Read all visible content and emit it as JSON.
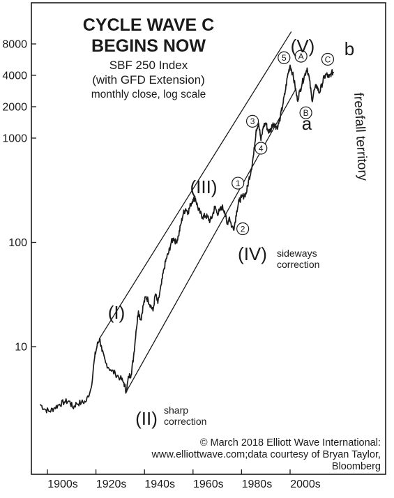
{
  "chart_data": {
    "type": "line",
    "title_line1": "CYCLE WAVE C",
    "title_line2": "BEGINS NOW",
    "subtitle_line1": "SBF 250 Index",
    "subtitle_line2": "(with GFD Extension)",
    "subtitle_line3": "monthly close, log scale",
    "y_scale": "log",
    "ylim": [
      1.9,
      11000
    ],
    "xlim": [
      1897,
      2020
    ],
    "y_ticks": [
      {
        "value": 8000,
        "label": "8000"
      },
      {
        "value": 4000,
        "label": "4000"
      },
      {
        "value": 2000,
        "label": "2000"
      },
      {
        "value": 1000,
        "label": "1000"
      },
      {
        "value": 100,
        "label": "100"
      },
      {
        "value": 10,
        "label": "10"
      }
    ],
    "x_ticks": [
      {
        "value": 1900,
        "label": "1900s"
      },
      {
        "value": 1920,
        "label": "1920s"
      },
      {
        "value": 1940,
        "label": "1940s"
      },
      {
        "value": 1960,
        "label": "1960s"
      },
      {
        "value": 1980,
        "label": "1980s"
      },
      {
        "value": 2000,
        "label": "2000s"
      }
    ],
    "series": [
      {
        "points": [
          [
            1897,
            2.8
          ],
          [
            1899,
            2.5
          ],
          [
            1901,
            2.4
          ],
          [
            1903,
            2.6
          ],
          [
            1905,
            2.8
          ],
          [
            1907,
            2.95
          ],
          [
            1909,
            3.0
          ],
          [
            1910.5,
            2.6
          ],
          [
            1912,
            2.85
          ],
          [
            1914,
            2.9
          ],
          [
            1916,
            3.0
          ],
          [
            1918,
            4.0
          ],
          [
            1919.5,
            8.0
          ],
          [
            1920.5,
            10.3
          ],
          [
            1921.5,
            12.0
          ],
          [
            1922.5,
            9.0
          ],
          [
            1924,
            7.0
          ],
          [
            1926,
            6.0
          ],
          [
            1928,
            5.5
          ],
          [
            1930,
            5.0
          ],
          [
            1931.5,
            4.5
          ],
          [
            1932.5,
            3.7
          ],
          [
            1933.5,
            5.2
          ],
          [
            1934.5,
            5.4
          ],
          [
            1935.5,
            8.0
          ],
          [
            1936.5,
            14.0
          ],
          [
            1937.5,
            22.0
          ],
          [
            1938.5,
            18.0
          ],
          [
            1939.5,
            25.0
          ],
          [
            1940.5,
            30.0
          ],
          [
            1941.5,
            28.0
          ],
          [
            1942.5,
            25.0
          ],
          [
            1943.5,
            22.0
          ],
          [
            1944.5,
            32.0
          ],
          [
            1945.5,
            26.0
          ],
          [
            1947,
            40.0
          ],
          [
            1948,
            55.0
          ],
          [
            1949,
            70.0
          ],
          [
            1950,
            80.0
          ],
          [
            1951,
            100.0
          ],
          [
            1952,
            110.0
          ],
          [
            1953,
            100.0
          ],
          [
            1954,
            115.0
          ],
          [
            1955,
            150.0
          ],
          [
            1956,
            190.0
          ],
          [
            1957,
            210.0
          ],
          [
            1958,
            195.0
          ],
          [
            1959,
            230.0
          ],
          [
            1960,
            260.0
          ],
          [
            1961,
            265.0
          ],
          [
            1962,
            215.0
          ],
          [
            1963,
            190.0
          ],
          [
            1964,
            175.0
          ],
          [
            1965,
            180.0
          ],
          [
            1966,
            175.0
          ],
          [
            1967,
            160.0
          ],
          [
            1968,
            180.0
          ],
          [
            1969,
            220.0
          ],
          [
            1970,
            190.0
          ],
          [
            1971,
            200.0
          ],
          [
            1972,
            220.0
          ],
          [
            1973,
            200.0
          ],
          [
            1974,
            150.0
          ],
          [
            1975,
            175.0
          ],
          [
            1976,
            140.0
          ],
          [
            1977,
            140.0
          ],
          [
            1978,
            200.0
          ],
          [
            1979,
            250.0
          ],
          [
            1980,
            270.0
          ],
          [
            1981,
            280.0
          ],
          [
            1982,
            300.0
          ],
          [
            1983,
            400.0
          ],
          [
            1984,
            500.0
          ],
          [
            1985,
            700.0
          ],
          [
            1986,
            1200.0
          ],
          [
            1987,
            1400.0
          ],
          [
            1988,
            950.0
          ],
          [
            1989,
            1300.0
          ],
          [
            1990,
            1400.0
          ],
          [
            1991,
            1150.0
          ],
          [
            1992,
            1200.0
          ],
          [
            1993,
            1400.0
          ],
          [
            1994,
            1300.0
          ],
          [
            1995,
            1300.0
          ],
          [
            1996,
            1600.0
          ],
          [
            1997,
            2100.0
          ],
          [
            1998,
            2800.0
          ],
          [
            1999,
            4000.0
          ],
          [
            2000,
            5000.0
          ],
          [
            2001,
            4200.0
          ],
          [
            2002,
            3200.0
          ],
          [
            2003,
            2300.0
          ],
          [
            2004,
            2800.0
          ],
          [
            2005,
            3400.0
          ],
          [
            2006,
            4000.0
          ],
          [
            2007,
            4700.0
          ],
          [
            2008,
            3600.0
          ],
          [
            2009,
            2300.0
          ],
          [
            2010,
            2900.0
          ],
          [
            2011,
            3200.0
          ],
          [
            2012,
            2700.0
          ],
          [
            2013,
            3200.0
          ],
          [
            2014,
            3800.0
          ],
          [
            2015,
            4100.0
          ],
          [
            2016,
            3800.0
          ],
          [
            2017,
            4200.0
          ],
          [
            2018,
            4300.0
          ]
        ]
      }
    ],
    "channels": [
      {
        "from": [
          1921.5,
          12.0
        ],
        "to": [
          2000.5,
          10500.0
        ]
      },
      {
        "from": [
          1932.5,
          3.7
        ],
        "to": [
          2002.5,
          3000.0
        ]
      }
    ],
    "wave_labels": {
      "I": "(I)",
      "II": "(II)",
      "III": "(III)",
      "IV": "(IV)",
      "V": "(V)",
      "a": "a",
      "b": "b"
    },
    "circled_labels": [
      {
        "text": "1",
        "x": 1978.5,
        "y": 370
      },
      {
        "text": "2",
        "x": 1980.5,
        "y": 135
      },
      {
        "text": "3",
        "x": 1984.5,
        "y": 1450
      },
      {
        "text": "4",
        "x": 1988,
        "y": 800
      },
      {
        "text": "5",
        "x": 1997.5,
        "y": 5900
      },
      {
        "text": "A",
        "x": 2004.5,
        "y": 6100
      },
      {
        "text": "B",
        "x": 2006.5,
        "y": 1750
      },
      {
        "text": "C",
        "x": 2015.5,
        "y": 5700
      }
    ],
    "annotations": {
      "sharp": "sharp",
      "sharp2": "correction",
      "sideways": "sideways",
      "sideways2": "correction",
      "freefall": "freefall territory"
    },
    "credit_line1": "© March 2018 Elliott Wave International:",
    "credit_line2": "www.elliottwave.com;data courtesy of Bryan Taylor,",
    "credit_line3": "Bloomberg"
  }
}
